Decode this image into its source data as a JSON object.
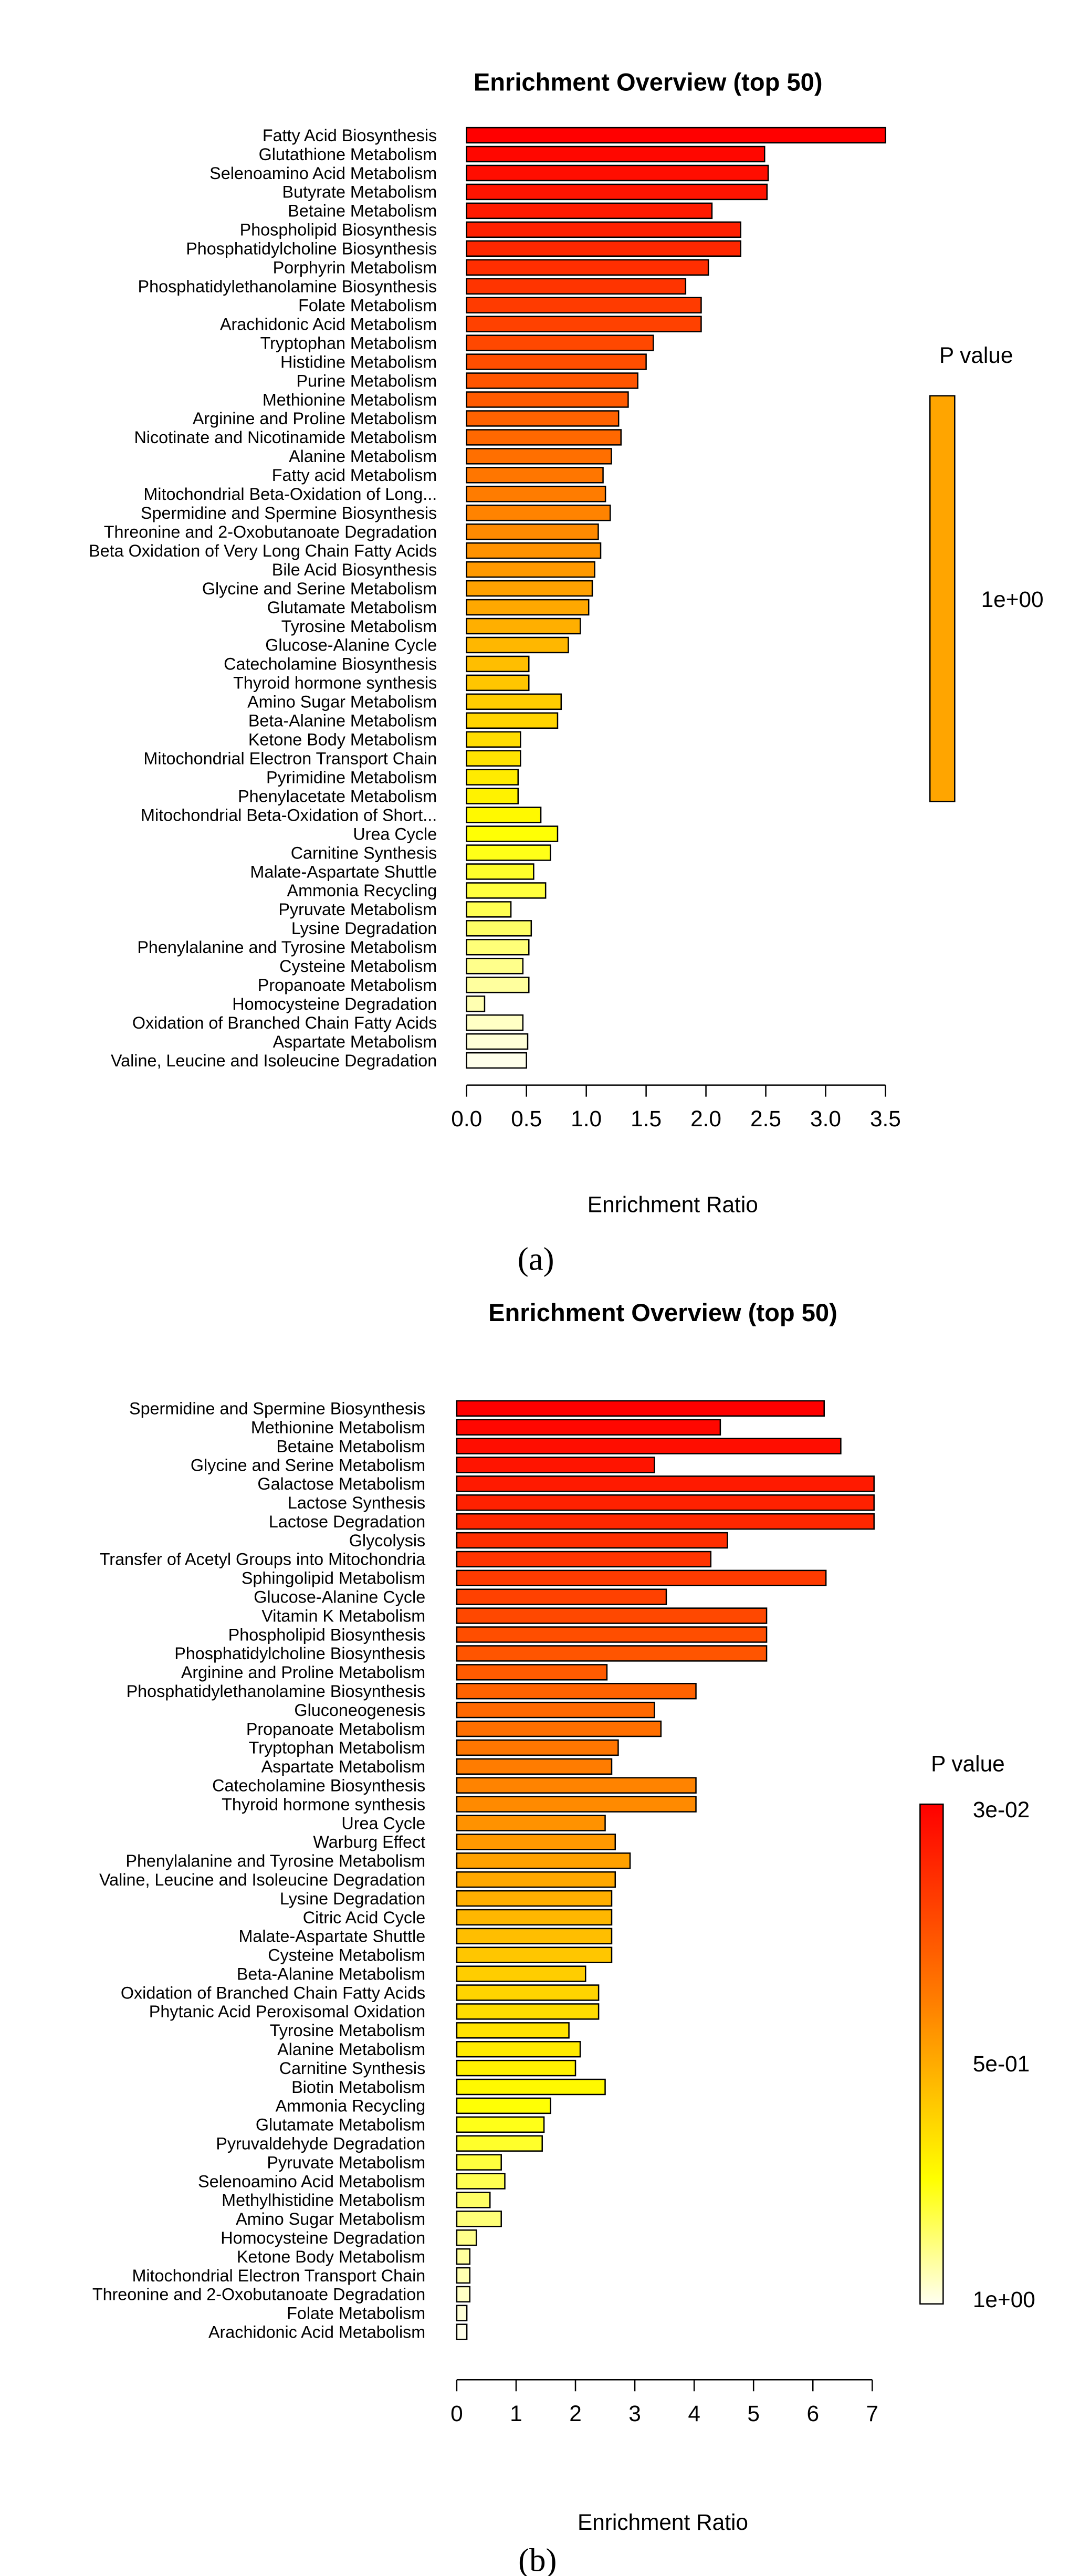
{
  "chart_data": [
    {
      "type": "bar",
      "orientation": "horizontal",
      "panel": "(a)",
      "title": "Enrichment Overview (top 50)",
      "xlabel": "Enrichment Ratio",
      "ylabel": "",
      "xlim": [
        0,
        3.5
      ],
      "xticks": [
        "0.0",
        "0.5",
        "1.0",
        "1.5",
        "2.0",
        "2.5",
        "3.0",
        "3.5"
      ],
      "xtick_values": [
        0,
        0.5,
        1,
        1.5,
        2,
        2.5,
        3,
        3.5
      ],
      "legend": {
        "title": "P value",
        "labels": [
          "1e+00"
        ],
        "color": "#FFA500",
        "placement": "right"
      },
      "grid": false,
      "categories": [
        "Fatty Acid Biosynthesis",
        "Glutathione Metabolism",
        "Selenoamino Acid Metabolism",
        "Butyrate Metabolism",
        "Betaine Metabolism",
        "Phospholipid Biosynthesis",
        "Phosphatidylcholine Biosynthesis",
        "Porphyrin Metabolism",
        "Phosphatidylethanolamine Biosynthesis",
        "Folate Metabolism",
        "Arachidonic Acid Metabolism",
        "Tryptophan Metabolism",
        "Histidine Metabolism",
        "Purine Metabolism",
        "Methionine Metabolism",
        "Arginine and Proline Metabolism",
        "Nicotinate and Nicotinamide Metabolism",
        "Alanine Metabolism",
        "Fatty acid Metabolism",
        "Mitochondrial Beta-Oxidation of Long...",
        "Spermidine and Spermine Biosynthesis",
        "Threonine and 2-Oxobutanoate Degradation",
        "Beta Oxidation of Very Long Chain Fatty Acids",
        "Bile Acid Biosynthesis",
        "Glycine and Serine Metabolism",
        "Glutamate Metabolism",
        "Tyrosine Metabolism",
        "Glucose-Alanine Cycle",
        "Catecholamine Biosynthesis",
        "Thyroid hormone synthesis",
        "Amino Sugar Metabolism",
        "Beta-Alanine Metabolism",
        "Ketone Body Metabolism",
        "Mitochondrial Electron Transport Chain",
        "Pyrimidine Metabolism",
        "Phenylacetate Metabolism",
        "Mitochondrial Beta-Oxidation of Short...",
        "Urea Cycle",
        "Carnitine Synthesis",
        "Malate-Aspartate Shuttle",
        "Ammonia Recycling",
        "Pyruvate Metabolism",
        "Lysine Degradation",
        "Phenylalanine and Tyrosine Metabolism",
        "Cysteine Metabolism",
        "Propanoate Metabolism",
        "Homocysteine Degradation",
        "Oxidation of Branched Chain Fatty Acids",
        "Aspartate Metabolism",
        "Valine, Leucine and Isoleucine Degradation"
      ],
      "values": [
        3.5,
        2.49,
        2.52,
        2.51,
        2.05,
        2.29,
        2.29,
        2.02,
        1.83,
        1.96,
        1.96,
        1.56,
        1.5,
        1.43,
        1.35,
        1.27,
        1.29,
        1.21,
        1.14,
        1.16,
        1.2,
        1.1,
        1.12,
        1.07,
        1.05,
        1.02,
        0.95,
        0.85,
        0.52,
        0.52,
        0.79,
        0.76,
        0.45,
        0.45,
        0.43,
        0.43,
        0.62,
        0.76,
        0.7,
        0.56,
        0.66,
        0.37,
        0.54,
        0.52,
        0.47,
        0.52,
        0.15,
        0.47,
        0.51,
        0.5
      ]
    },
    {
      "type": "bar",
      "orientation": "horizontal",
      "panel": "(b)",
      "title": "Enrichment Overview (top 50)",
      "xlabel": "Enrichment Ratio",
      "ylabel": "",
      "xlim": [
        0,
        7
      ],
      "xticks": [
        "0",
        "1",
        "2",
        "3",
        "4",
        "5",
        "6",
        "7"
      ],
      "xtick_values": [
        0,
        1,
        2,
        3,
        4,
        5,
        6,
        7
      ],
      "legend": {
        "title": "P value",
        "labels": [
          "3e-02",
          "5e-01",
          "1e+00"
        ],
        "placement": "right"
      },
      "grid": false,
      "categories": [
        "Spermidine and Spermine Biosynthesis",
        "Methionine Metabolism",
        "Betaine Metabolism",
        "Glycine and Serine Metabolism",
        "Galactose Metabolism",
        "Lactose Synthesis",
        "Lactose Degradation",
        "Glycolysis",
        "Transfer of Acetyl Groups into Mitochondria",
        "Sphingolipid Metabolism",
        "Glucose-Alanine Cycle",
        "Vitamin K Metabolism",
        "Phospholipid Biosynthesis",
        "Phosphatidylcholine Biosynthesis",
        "Arginine and Proline Metabolism",
        "Phosphatidylethanolamine Biosynthesis",
        "Gluconeogenesis",
        "Propanoate Metabolism",
        "Tryptophan Metabolism",
        "Aspartate Metabolism",
        "Catecholamine Biosynthesis",
        "Thyroid hormone synthesis",
        "Urea Cycle",
        "Warburg Effect",
        "Phenylalanine and Tyrosine Metabolism",
        "Valine, Leucine and Isoleucine Degradation",
        "Lysine Degradation",
        "Citric Acid Cycle",
        "Malate-Aspartate Shuttle",
        "Cysteine Metabolism",
        "Beta-Alanine Metabolism",
        "Oxidation of Branched Chain Fatty Acids",
        "Phytanic Acid Peroxisomal Oxidation",
        "Tyrosine Metabolism",
        "Alanine Metabolism",
        "Carnitine Synthesis",
        "Biotin Metabolism",
        "Ammonia Recycling",
        "Glutamate Metabolism",
        "Pyruvaldehyde Degradation",
        "Pyruvate Metabolism",
        "Selenoamino Acid Metabolism",
        "Methylhistidine Metabolism",
        "Amino Sugar Metabolism",
        "Homocysteine Degradation",
        "Ketone Body Metabolism",
        "Mitochondrial Electron Transport Chain",
        "Threonine and 2-Oxobutanoate Degradation",
        "Folate Metabolism",
        "Arachidonic Acid Metabolism"
      ],
      "values": [
        6.19,
        4.44,
        6.47,
        3.33,
        7.03,
        7.03,
        7.03,
        4.56,
        4.28,
        6.22,
        3.53,
        5.22,
        5.22,
        5.22,
        2.53,
        4.03,
        3.33,
        3.44,
        2.72,
        2.61,
        4.03,
        4.03,
        2.5,
        2.67,
        2.92,
        2.67,
        2.61,
        2.61,
        2.61,
        2.61,
        2.17,
        2.39,
        2.39,
        1.89,
        2.08,
        2.0,
        2.5,
        1.58,
        1.47,
        1.44,
        0.75,
        0.81,
        0.56,
        0.75,
        0.33,
        0.22,
        0.22,
        0.22,
        0.17,
        0.17
      ]
    }
  ]
}
